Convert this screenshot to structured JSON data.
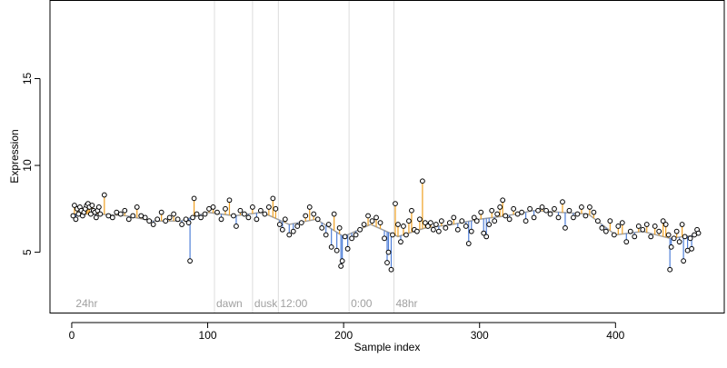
{
  "chart_data": {
    "type": "scatter",
    "xlabel": "Sample index",
    "ylabel": "Expression",
    "xlim": [
      -16,
      480
    ],
    "ylim": [
      1.5,
      19.5
    ],
    "x_ticks": [
      0,
      100,
      200,
      300,
      400
    ],
    "y_ticks": [
      5,
      10,
      15
    ],
    "grid": false,
    "baseline_series": [
      {
        "name": "",
        "color": "#a0a0a0",
        "x": [
          1,
          20,
          40,
          60,
          80,
          100,
          120,
          140,
          160,
          180,
          200,
          220,
          240,
          260,
          280,
          300,
          320,
          340,
          360,
          380,
          400,
          420,
          440,
          461
        ],
        "y": [
          7.2,
          7.2,
          7.1,
          6.8,
          6.8,
          7.3,
          7.1,
          7.3,
          6.6,
          6.9,
          5.9,
          6.6,
          5.9,
          6.4,
          6.6,
          6.9,
          7.1,
          7.4,
          7.3,
          7.2,
          6.0,
          6.2,
          5.8,
          6.0
        ]
      }
    ],
    "period_markers": [
      {
        "x": 105,
        "label": "dawn"
      },
      {
        "x": 133,
        "label": "dusk"
      },
      {
        "x": 152,
        "label": "12:00"
      },
      {
        "x": 204,
        "label": "0:00"
      },
      {
        "x": 237,
        "label": "48hr"
      }
    ],
    "corner_label": {
      "x": 3,
      "label": "24hr"
    },
    "points": [
      [
        1,
        7.1
      ],
      [
        2,
        7.7
      ],
      [
        3,
        6.9
      ],
      [
        4,
        7.5
      ],
      [
        5,
        7.2
      ],
      [
        6,
        7.6
      ],
      [
        7,
        7.4
      ],
      [
        8,
        7.1
      ],
      [
        9,
        7.3
      ],
      [
        10,
        7.5
      ],
      [
        11,
        7.7
      ],
      [
        12,
        7.8
      ],
      [
        13,
        7.6
      ],
      [
        14,
        7.2
      ],
      [
        15,
        7.7
      ],
      [
        16,
        7.4
      ],
      [
        17,
        7.3
      ],
      [
        18,
        7.0
      ],
      [
        19,
        7.4
      ],
      [
        20,
        7.6
      ],
      [
        21,
        7.2
      ],
      [
        24,
        8.3
      ],
      [
        27,
        7.1
      ],
      [
        30,
        7.0
      ],
      [
        33,
        7.3
      ],
      [
        36,
        7.2
      ],
      [
        39,
        7.4
      ],
      [
        42,
        6.9
      ],
      [
        45,
        7.1
      ],
      [
        48,
        7.6
      ],
      [
        51,
        7.1
      ],
      [
        54,
        7.0
      ],
      [
        57,
        6.8
      ],
      [
        60,
        6.6
      ],
      [
        63,
        6.9
      ],
      [
        66,
        7.3
      ],
      [
        69,
        6.8
      ],
      [
        72,
        7.0
      ],
      [
        75,
        7.2
      ],
      [
        78,
        6.9
      ],
      [
        81,
        6.6
      ],
      [
        84,
        6.9
      ],
      [
        86,
        6.7
      ],
      [
        87,
        4.5
      ],
      [
        89,
        7.0
      ],
      [
        90,
        8.1
      ],
      [
        92,
        7.2
      ],
      [
        95,
        7.0
      ],
      [
        98,
        7.2
      ],
      [
        101,
        7.5
      ],
      [
        104,
        7.6
      ],
      [
        107,
        7.3
      ],
      [
        110,
        6.9
      ],
      [
        113,
        7.5
      ],
      [
        116,
        8.0
      ],
      [
        119,
        7.1
      ],
      [
        121,
        6.5
      ],
      [
        124,
        7.4
      ],
      [
        127,
        7.2
      ],
      [
        130,
        7.0
      ],
      [
        133,
        7.6
      ],
      [
        136,
        6.9
      ],
      [
        139,
        7.4
      ],
      [
        142,
        7.2
      ],
      [
        145,
        7.6
      ],
      [
        148,
        8.1
      ],
      [
        150,
        7.5
      ],
      [
        153,
        6.6
      ],
      [
        155,
        6.3
      ],
      [
        157,
        6.9
      ],
      [
        160,
        6.0
      ],
      [
        163,
        6.2
      ],
      [
        166,
        6.5
      ],
      [
        169,
        6.7
      ],
      [
        172,
        7.1
      ],
      [
        175,
        7.6
      ],
      [
        178,
        7.2
      ],
      [
        181,
        6.9
      ],
      [
        184,
        6.4
      ],
      [
        187,
        6.0
      ],
      [
        189,
        6.6
      ],
      [
        191,
        5.3
      ],
      [
        193,
        7.2
      ],
      [
        195,
        5.1
      ],
      [
        197,
        6.4
      ],
      [
        198,
        4.2
      ],
      [
        199,
        4.5
      ],
      [
        201,
        5.9
      ],
      [
        203,
        5.2
      ],
      [
        206,
        5.8
      ],
      [
        209,
        6.0
      ],
      [
        212,
        6.3
      ],
      [
        215,
        6.6
      ],
      [
        218,
        7.1
      ],
      [
        221,
        6.8
      ],
      [
        224,
        7.0
      ],
      [
        227,
        6.7
      ],
      [
        230,
        5.8
      ],
      [
        232,
        4.4
      ],
      [
        233,
        5.0
      ],
      [
        235,
        4.0
      ],
      [
        236,
        6.0
      ],
      [
        238,
        7.8
      ],
      [
        240,
        6.6
      ],
      [
        242,
        5.6
      ],
      [
        244,
        6.5
      ],
      [
        246,
        6.0
      ],
      [
        248,
        6.8
      ],
      [
        250,
        7.4
      ],
      [
        252,
        6.3
      ],
      [
        254,
        6.2
      ],
      [
        256,
        6.9
      ],
      [
        258,
        9.1
      ],
      [
        260,
        6.7
      ],
      [
        262,
        6.5
      ],
      [
        264,
        6.7
      ],
      [
        266,
        6.3
      ],
      [
        268,
        6.6
      ],
      [
        270,
        6.2
      ],
      [
        272,
        6.8
      ],
      [
        275,
        6.4
      ],
      [
        278,
        6.7
      ],
      [
        281,
        7.0
      ],
      [
        284,
        6.3
      ],
      [
        287,
        6.8
      ],
      [
        290,
        6.5
      ],
      [
        292,
        5.5
      ],
      [
        294,
        6.2
      ],
      [
        296,
        7.0
      ],
      [
        298,
        6.8
      ],
      [
        301,
        7.3
      ],
      [
        303,
        6.1
      ],
      [
        305,
        5.9
      ],
      [
        307,
        6.6
      ],
      [
        309,
        7.4
      ],
      [
        311,
        6.8
      ],
      [
        313,
        7.2
      ],
      [
        315,
        7.6
      ],
      [
        317,
        8.0
      ],
      [
        319,
        7.1
      ],
      [
        322,
        6.9
      ],
      [
        325,
        7.5
      ],
      [
        328,
        7.2
      ],
      [
        331,
        7.3
      ],
      [
        334,
        6.8
      ],
      [
        337,
        7.5
      ],
      [
        340,
        7.0
      ],
      [
        343,
        7.4
      ],
      [
        346,
        7.6
      ],
      [
        349,
        7.4
      ],
      [
        352,
        7.2
      ],
      [
        355,
        7.5
      ],
      [
        358,
        7.0
      ],
      [
        361,
        7.9
      ],
      [
        363,
        6.4
      ],
      [
        366,
        7.4
      ],
      [
        369,
        7.0
      ],
      [
        372,
        7.2
      ],
      [
        375,
        7.6
      ],
      [
        378,
        7.1
      ],
      [
        381,
        7.6
      ],
      [
        384,
        7.3
      ],
      [
        387,
        6.8
      ],
      [
        390,
        6.4
      ],
      [
        393,
        6.2
      ],
      [
        396,
        6.8
      ],
      [
        399,
        6.0
      ],
      [
        402,
        6.5
      ],
      [
        405,
        6.7
      ],
      [
        408,
        5.6
      ],
      [
        411,
        6.2
      ],
      [
        414,
        5.9
      ],
      [
        417,
        6.5
      ],
      [
        420,
        6.3
      ],
      [
        423,
        6.6
      ],
      [
        426,
        5.9
      ],
      [
        429,
        6.5
      ],
      [
        432,
        6.2
      ],
      [
        435,
        6.8
      ],
      [
        437,
        6.6
      ],
      [
        439,
        6.0
      ],
      [
        440,
        4.0
      ],
      [
        441,
        5.3
      ],
      [
        443,
        5.8
      ],
      [
        445,
        6.2
      ],
      [
        447,
        5.6
      ],
      [
        449,
        6.6
      ],
      [
        450,
        4.5
      ],
      [
        451,
        5.9
      ],
      [
        453,
        5.1
      ],
      [
        455,
        5.8
      ],
      [
        456,
        5.2
      ],
      [
        458,
        6.0
      ],
      [
        460,
        6.3
      ],
      [
        461,
        6.1
      ]
    ],
    "colors": {
      "axis": "#000000",
      "marker_line": "#dcdcdc",
      "marker_label": "#a0a0a0",
      "baseline": "#a0a0a0",
      "above": "#f0a020",
      "below": "#4f7fd8",
      "point_fill": "#ffffff",
      "point_stroke": "#000000"
    }
  }
}
